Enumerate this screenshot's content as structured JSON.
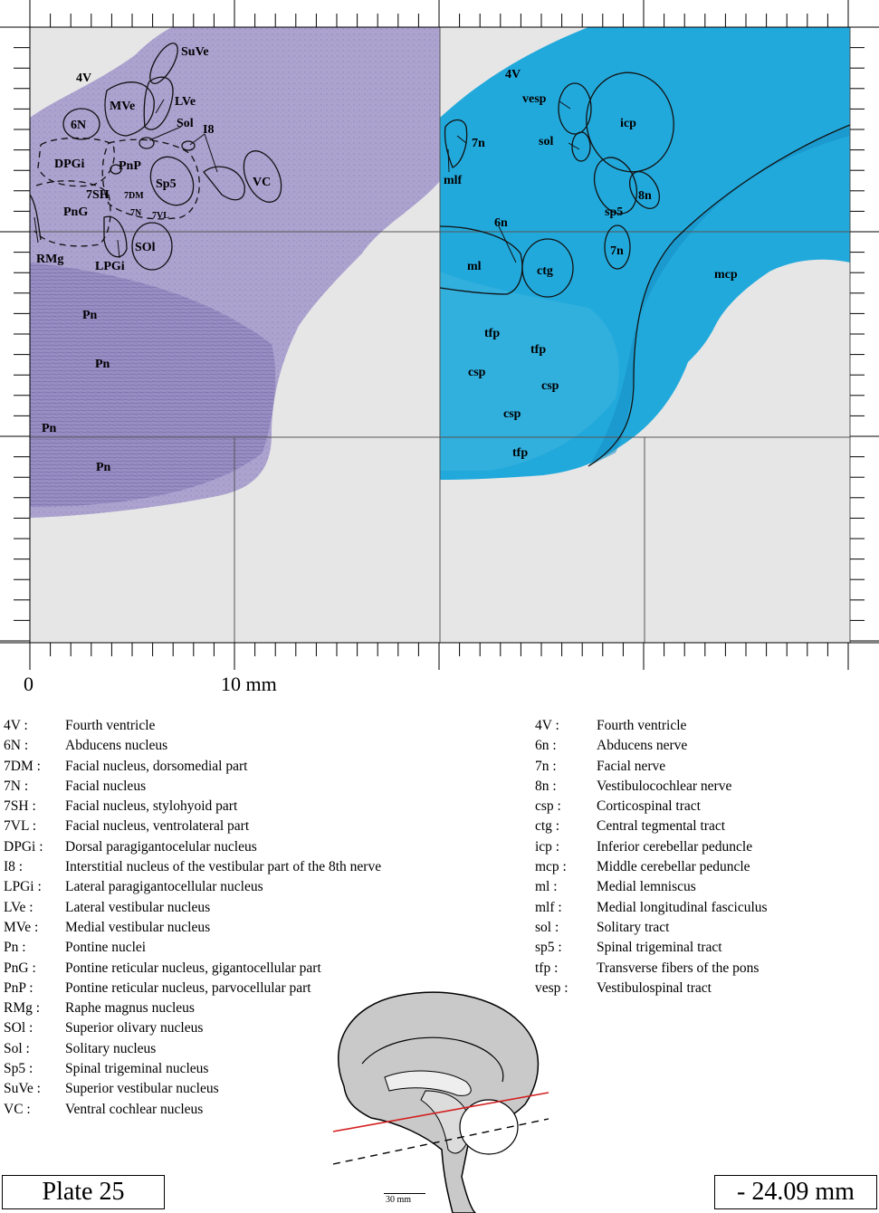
{
  "axis": {
    "zero_label": "0",
    "ten_label": "10 mm"
  },
  "plate": {
    "label": "Plate 25"
  },
  "depth": {
    "label": "- 24.09 mm"
  },
  "scalebar": {
    "label": "30 mm"
  },
  "left_panel": {
    "stain_color": "#8b80b8",
    "labels": [
      "SuVe",
      "4V",
      "MVe",
      "LVe",
      "6N",
      "Sol",
      "I8",
      "DPGi",
      "PnP",
      "Sp5",
      "VC",
      "7SH",
      "7DM",
      "PnG",
      "7N",
      "7VL",
      "SOl",
      "RMg",
      "LPGi",
      "Pn",
      "Pn",
      "Pn",
      "Pn"
    ]
  },
  "right_panel": {
    "stain_color": "#1aa6d8",
    "labels": [
      "4V",
      "vesp",
      "icp",
      "7n",
      "sol",
      "mlf",
      "8n",
      "sp5",
      "6n",
      "7n",
      "ml",
      "ctg",
      "mcp",
      "tfp",
      "tfp",
      "csp",
      "csp",
      "csp",
      "tfp"
    ]
  },
  "legend_left": [
    {
      "abbr": "4V :",
      "desc": "Fourth ventricle"
    },
    {
      "abbr": "6N :",
      "desc": "Abducens nucleus"
    },
    {
      "abbr": "7DM :",
      "desc": "Facial nucleus, dorsomedial part"
    },
    {
      "abbr": "7N :",
      "desc": "Facial nucleus"
    },
    {
      "abbr": "7SH :",
      "desc": "Facial nucleus, stylohyoid part"
    },
    {
      "abbr": "7VL :",
      "desc": "Facial nucleus, ventrolateral part"
    },
    {
      "abbr": "DPGi :",
      "desc": "Dorsal paragigantocelular nucleus"
    },
    {
      "abbr": "I8 :",
      "desc": "Interstitial nucleus of the vestibular part of the 8th nerve"
    },
    {
      "abbr": "LPGi :",
      "desc": "Lateral paragigantocellular nucleus"
    },
    {
      "abbr": "LVe :",
      "desc": "Lateral vestibular nucleus"
    },
    {
      "abbr": "MVe :",
      "desc": "Medial vestibular nucleus"
    },
    {
      "abbr": "Pn :",
      "desc": "Pontine nuclei"
    },
    {
      "abbr": "PnG :",
      "desc": "Pontine reticular nucleus, gigantocellular part"
    },
    {
      "abbr": "PnP :",
      "desc": "Pontine reticular nucleus, parvocellular part"
    },
    {
      "abbr": "RMg :",
      "desc": "Raphe magnus nucleus"
    },
    {
      "abbr": "SOl :",
      "desc": "Superior olivary nucleus"
    },
    {
      "abbr": "Sol :",
      "desc": "Solitary nucleus"
    },
    {
      "abbr": "Sp5 :",
      "desc": "Spinal trigeminal nucleus"
    },
    {
      "abbr": "SuVe :",
      "desc": "Superior vestibular nucleus"
    },
    {
      "abbr": "VC :",
      "desc": "Ventral cochlear nucleus"
    }
  ],
  "legend_right": [
    {
      "abbr": "4V :",
      "desc": "Fourth ventricle"
    },
    {
      "abbr": "6n :",
      "desc": "Abducens nerve"
    },
    {
      "abbr": "7n :",
      "desc": "Facial nerve"
    },
    {
      "abbr": "8n :",
      "desc": "Vestibulocochlear nerve"
    },
    {
      "abbr": "csp :",
      "desc": "Corticospinal tract"
    },
    {
      "abbr": "ctg :",
      "desc": "Central tegmental tract"
    },
    {
      "abbr": "icp :",
      "desc": "Inferior cerebellar peduncle"
    },
    {
      "abbr": "mcp :",
      "desc": "Middle cerebellar peduncle"
    },
    {
      "abbr": "ml :",
      "desc": "Medial lemniscus"
    },
    {
      "abbr": "mlf :",
      "desc": "Medial longitudinal fasciculus"
    },
    {
      "abbr": "sol :",
      "desc": "Solitary tract"
    },
    {
      "abbr": "sp5 :",
      "desc": "Spinal trigeminal tract"
    },
    {
      "abbr": "tfp :",
      "desc": "Transverse fibers of the pons"
    },
    {
      "abbr": "vesp :",
      "desc": "Vestibulospinal tract"
    }
  ]
}
